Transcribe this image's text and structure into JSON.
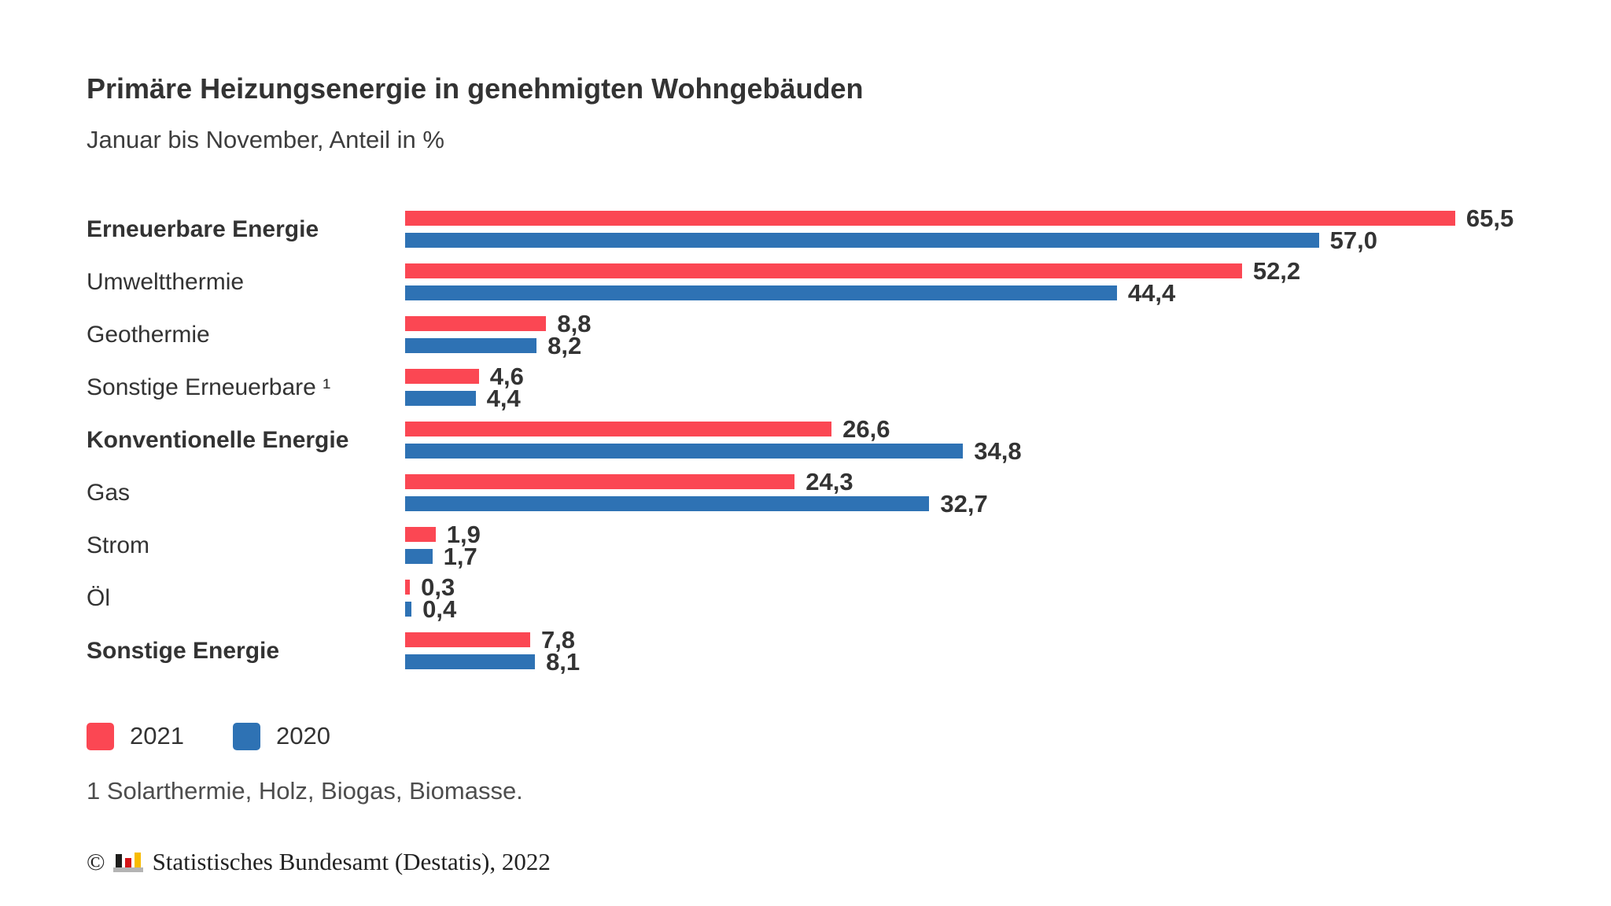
{
  "chart_data": {
    "type": "bar",
    "orientation": "horizontal",
    "title": "Primäre Heizungsenergie in genehmigten Wohngebäuden",
    "subtitle": "Januar bis November, Anteil in %",
    "unit": "%",
    "grid": false,
    "x_axis_visible": false,
    "value_labels": true,
    "legend_position": "bottom",
    "xlim": [
      0,
      65.5
    ],
    "categories": [
      "Erneuerbare Energie",
      "Umweltthermie",
      "Geothermie",
      "Sonstige Erneuerbare ¹",
      "Konventionelle Energie",
      "Gas",
      "Strom",
      "Öl",
      "Sonstige Energie"
    ],
    "series": [
      {
        "name": "2021",
        "color": "#fb4753",
        "values": [
          65.5,
          52.2,
          8.8,
          4.6,
          26.6,
          24.3,
          1.9,
          0.3,
          7.8
        ]
      },
      {
        "name": "2020",
        "color": "#2e72b4",
        "values": [
          57.0,
          44.4,
          8.2,
          4.4,
          34.8,
          32.7,
          1.7,
          0.4,
          8.1
        ]
      }
    ],
    "rows": [
      {
        "label": "Erneuerbare Energie",
        "group_header": true,
        "v2021": 65.5,
        "d2021": "65,5",
        "v2020": 57.0,
        "d2020": "57,0"
      },
      {
        "label": "Umweltthermie",
        "group_header": false,
        "v2021": 52.2,
        "d2021": "52,2",
        "v2020": 44.4,
        "d2020": "44,4"
      },
      {
        "label": "Geothermie",
        "group_header": false,
        "v2021": 8.8,
        "d2021": "8,8",
        "v2020": 8.2,
        "d2020": "8,2"
      },
      {
        "label": "Sonstige Erneuerbare ¹",
        "group_header": false,
        "v2021": 4.6,
        "d2021": "4,6",
        "v2020": 4.4,
        "d2020": "4,4"
      },
      {
        "label": "Konventionelle Energie",
        "group_header": true,
        "v2021": 26.6,
        "d2021": "26,6",
        "v2020": 34.8,
        "d2020": "34,8"
      },
      {
        "label": "Gas",
        "group_header": false,
        "v2021": 24.3,
        "d2021": "24,3",
        "v2020": 32.7,
        "d2020": "32,7"
      },
      {
        "label": "Strom",
        "group_header": false,
        "v2021": 1.9,
        "d2021": "1,9",
        "v2020": 1.7,
        "d2020": "1,7"
      },
      {
        "label": "Öl",
        "group_header": false,
        "v2021": 0.3,
        "d2021": "0,3",
        "v2020": 0.4,
        "d2020": "0,4"
      },
      {
        "label": "Sonstige Energie",
        "group_header": true,
        "v2021": 7.8,
        "d2021": "7,8",
        "v2020": 8.1,
        "d2020": "8,1"
      }
    ],
    "legend": [
      {
        "label": "2021",
        "color": "#fb4753"
      },
      {
        "label": "2020",
        "color": "#2e72b4"
      }
    ],
    "footnote": "1 Solarthermie, Holz, Biogas, Biomasse."
  },
  "source": {
    "copyright_symbol": "©",
    "text": "Statistisches Bundesamt (Destatis), 2022"
  }
}
